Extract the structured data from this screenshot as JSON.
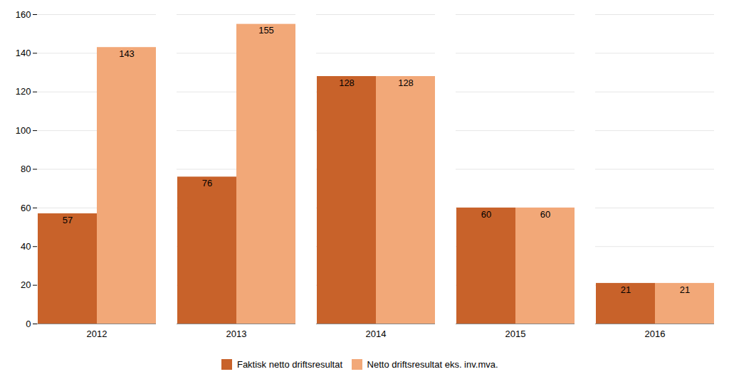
{
  "chart_data": {
    "type": "bar",
    "categories": [
      "2012",
      "2013",
      "2014",
      "2015",
      "2016"
    ],
    "series": [
      {
        "name": "Faktisk netto driftsresultat",
        "color": "#C8622A",
        "values": [
          57,
          76,
          128,
          60,
          21
        ]
      },
      {
        "name": "Netto driftsresultat eks. inv.mva.",
        "color": "#F2A878",
        "values": [
          143,
          155,
          128,
          60,
          21
        ]
      }
    ],
    "ylim": [
      0,
      160
    ],
    "yticks": [
      0,
      20,
      40,
      60,
      80,
      100,
      120,
      140,
      160
    ],
    "grid": true,
    "data_labels": true,
    "legend": "bottom"
  }
}
